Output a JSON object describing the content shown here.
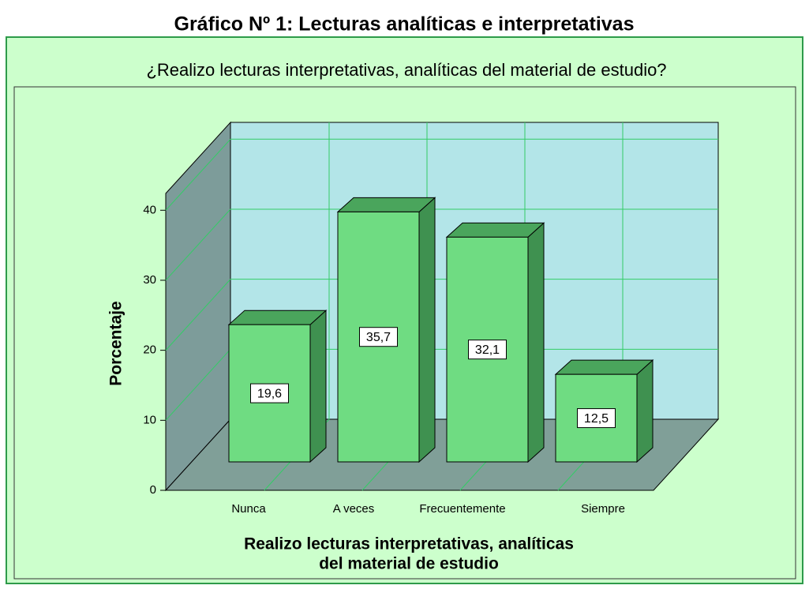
{
  "chart_data": {
    "type": "bar3d",
    "title": "Gráfico Nº 1: Lecturas analíticas e interpretativas",
    "subtitle": "¿Realizo lecturas interpretativas, analíticas del material de estudio?",
    "x_label": [
      "Realizo lecturas interpretativas, analíticas",
      "del material de estudio"
    ],
    "y_label": "Porcentaje",
    "categories": [
      "Nunca",
      "A veces",
      "Frecuentemente",
      "Siempre"
    ],
    "values": [
      19.6,
      35.7,
      32.1,
      12.5
    ],
    "value_labels": [
      "19,6",
      "35,7",
      "32,1",
      "12,5"
    ],
    "color": "#6fdc82",
    "ylim": [
      0,
      42.4
    ],
    "yticks": [
      0,
      10,
      20,
      30,
      40
    ],
    "grid": true
  }
}
